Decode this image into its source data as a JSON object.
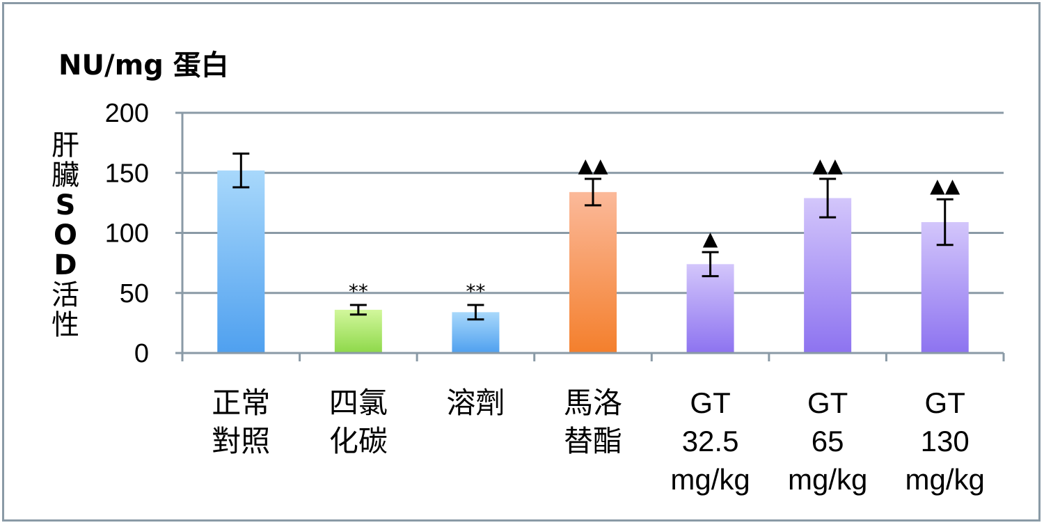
{
  "chart_data": {
    "type": "bar",
    "unit_label": "NU/mg 蛋白",
    "ylabel": "肝臟SOD活性",
    "ylabel_chars": [
      {
        "t": "肝",
        "bold": false
      },
      {
        "t": "臟",
        "bold": false
      },
      {
        "t": "S",
        "bold": true
      },
      {
        "t": "O",
        "bold": true
      },
      {
        "t": "D",
        "bold": true
      },
      {
        "t": "活",
        "bold": false
      },
      {
        "t": "性",
        "bold": false
      }
    ],
    "ylim": [
      0,
      200
    ],
    "yticks": [
      0,
      50,
      100,
      150,
      200
    ],
    "grid": true,
    "categories": [
      [
        "正常",
        "對照"
      ],
      [
        "四氯",
        "化碳"
      ],
      [
        "溶劑"
      ],
      [
        "馬洛",
        "替酯"
      ],
      [
        "GT",
        "32.5",
        "mg/kg"
      ],
      [
        "GT",
        "65",
        "mg/kg"
      ],
      [
        "GT",
        "130",
        "mg/kg"
      ]
    ],
    "values": [
      152,
      36,
      34,
      134,
      74,
      129,
      109
    ],
    "error": [
      14,
      4,
      6,
      11,
      10,
      16,
      19
    ],
    "annotations": [
      "",
      "**",
      "**",
      "▲▲",
      "▲",
      "▲▲",
      "▲▲"
    ],
    "bar_colors": [
      [
        "#a8d8fb",
        "#4fa0ef"
      ],
      [
        "#d2f79c",
        "#8ed84a"
      ],
      [
        "#a8d8fb",
        "#4fa0ef"
      ],
      [
        "#fbb99a",
        "#f47f2c"
      ],
      [
        "#d3c6fb",
        "#8d73f0"
      ],
      [
        "#d3c6fb",
        "#8d73f0"
      ],
      [
        "#d3c6fb",
        "#8d73f0"
      ]
    ],
    "gridline_color": "#8a9aa6"
  }
}
